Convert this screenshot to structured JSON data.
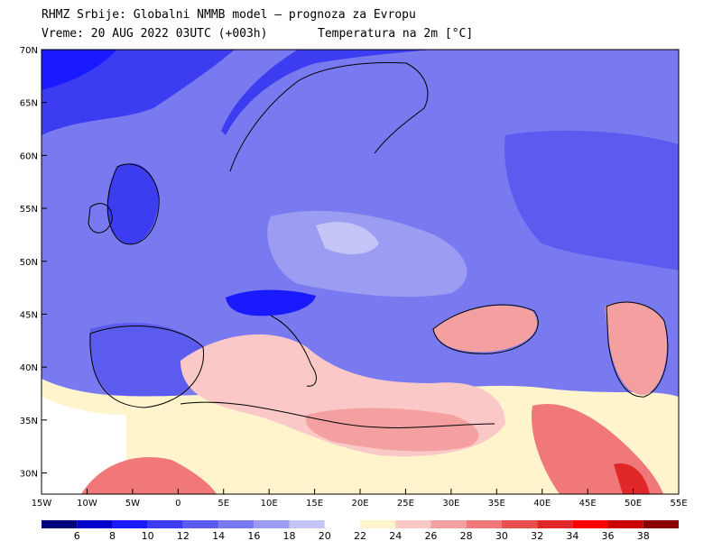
{
  "header": {
    "line1": "RHMZ Srbije: Globalni NMMB model — prognoza za Evropu",
    "line2_left": "Vreme: 20 AUG 2022 03UTC (+003h)",
    "line2_right": "Temperatura na 2m [°C]"
  },
  "map": {
    "lon_range": [
      -15,
      55
    ],
    "lat_range": [
      28,
      70
    ],
    "lat_ticks": [
      "70N",
      "65N",
      "60N",
      "55N",
      "50N",
      "45N",
      "40N",
      "35N",
      "30N"
    ],
    "lon_ticks": [
      "15W",
      "10W",
      "5W",
      "0",
      "5E",
      "10E",
      "15E",
      "20E",
      "25E",
      "30E",
      "35E",
      "40E",
      "45E",
      "50E",
      "55E"
    ]
  },
  "colorbar": {
    "labels": [
      "6",
      "8",
      "10",
      "12",
      "14",
      "16",
      "18",
      "20",
      "22",
      "24",
      "26",
      "28",
      "30",
      "32",
      "34",
      "36",
      "38"
    ],
    "colors": [
      "#00007a",
      "#0000c8",
      "#1a1aff",
      "#3c3cf0",
      "#5b5bf0",
      "#7a7af0",
      "#9c9cf2",
      "#c4c4f6",
      "#ffffff",
      "#fff4cc",
      "#fbc8c8",
      "#f5a0a0",
      "#f07878",
      "#e85050",
      "#e02828",
      "#ff0000",
      "#c80000",
      "#8a0000"
    ]
  }
}
